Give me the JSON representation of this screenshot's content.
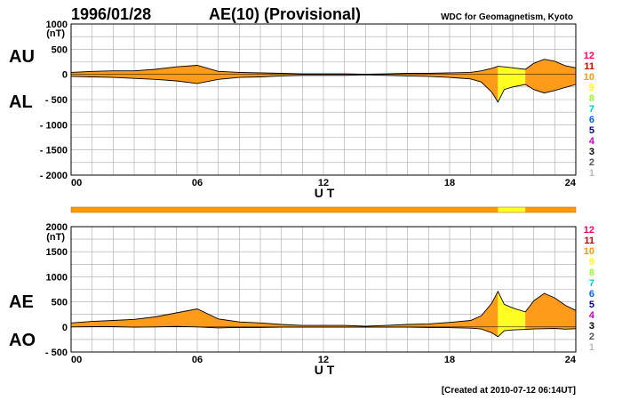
{
  "header": {
    "date": "1996/01/28",
    "title": "AE(10) (Provisional)",
    "source": "WDC for Geomagnetism, Kyoto",
    "created": "[Created at 2010-07-12 06:14UT]"
  },
  "legend": {
    "labels": [
      "12",
      "11",
      "10",
      "9",
      "8",
      "7",
      "6",
      "5",
      "4",
      "3",
      "2",
      "1"
    ],
    "colors": [
      "#ff0066",
      "#cc0000",
      "#ff9900",
      "#ffff00",
      "#99ff33",
      "#00cccc",
      "#0066ff",
      "#000099",
      "#cc00cc",
      "#000000",
      "#555555",
      "#bbbbbb"
    ]
  },
  "fill_colors": {
    "orange": "#ff9b1a",
    "yellow": "#ffff22",
    "bar": "#ff9900"
  },
  "station_bar": {
    "segments": [
      {
        "from": 0,
        "to": 20.3,
        "stations": 10
      },
      {
        "from": 20.3,
        "to": 21.6,
        "stations": 9
      },
      {
        "from": 21.6,
        "to": 24,
        "stations": 10
      }
    ]
  },
  "chart_data": [
    {
      "type": "area",
      "xlabel": "U T",
      "ylabel": "(nT)",
      "labels_left": [
        "AU",
        "AL"
      ],
      "xlim": [
        0,
        24
      ],
      "ylim": [
        -2000,
        1000
      ],
      "xticks": [
        0,
        6,
        12,
        18,
        24
      ],
      "xtick_labels": [
        "00",
        "06",
        "12",
        "18",
        "24"
      ],
      "yticks": [
        1000,
        500,
        0,
        -500,
        -1000,
        -1500,
        -2000
      ],
      "ytick_labels": [
        "1000",
        "500",
        "0",
        "- 500",
        "- 1000",
        "- 1500",
        "- 2000"
      ],
      "grid": true,
      "series": [
        {
          "name": "AU",
          "x": [
            0,
            1,
            2,
            3,
            4,
            5,
            6,
            7,
            8,
            9,
            10,
            11,
            12,
            13,
            14,
            15,
            16,
            17,
            18,
            19,
            19.5,
            20,
            20.3,
            20.6,
            21,
            21.6,
            22,
            22.5,
            23,
            23.5,
            24
          ],
          "values": [
            40,
            60,
            70,
            70,
            100,
            150,
            180,
            60,
            40,
            30,
            20,
            10,
            10,
            10,
            5,
            10,
            20,
            20,
            30,
            40,
            70,
            120,
            160,
            150,
            130,
            100,
            220,
            300,
            260,
            170,
            130
          ]
        },
        {
          "name": "AL",
          "x": [
            0,
            1,
            2,
            3,
            4,
            5,
            6,
            7,
            8,
            9,
            10,
            11,
            12,
            13,
            14,
            15,
            16,
            17,
            18,
            19,
            19.5,
            20,
            20.3,
            20.6,
            21,
            21.6,
            22,
            22.5,
            23,
            23.5,
            24
          ],
          "values": [
            -40,
            -50,
            -60,
            -80,
            -100,
            -130,
            -180,
            -100,
            -60,
            -50,
            -30,
            -20,
            -20,
            -20,
            -10,
            -20,
            -30,
            -40,
            -60,
            -90,
            -150,
            -350,
            -550,
            -300,
            -250,
            -200,
            -300,
            -370,
            -320,
            -260,
            -200
          ]
        }
      ]
    },
    {
      "type": "area",
      "xlabel": "U T",
      "ylabel": "(nT)",
      "labels_left": [
        "AE",
        "AO"
      ],
      "xlim": [
        0,
        24
      ],
      "ylim": [
        -500,
        2000
      ],
      "xticks": [
        0,
        6,
        12,
        18,
        24
      ],
      "xtick_labels": [
        "00",
        "06",
        "12",
        "18",
        "24"
      ],
      "yticks": [
        2000,
        1500,
        1000,
        500,
        0,
        -500
      ],
      "ytick_labels": [
        "2000",
        "1500",
        "1000",
        "500",
        "0",
        "- 500"
      ],
      "grid": true,
      "series": [
        {
          "name": "AE",
          "x": [
            0,
            1,
            2,
            3,
            4,
            5,
            6,
            7,
            8,
            9,
            10,
            11,
            12,
            13,
            14,
            15,
            16,
            17,
            18,
            19,
            19.5,
            20,
            20.3,
            20.6,
            21,
            21.6,
            22,
            22.5,
            23,
            23.5,
            24
          ],
          "values": [
            80,
            110,
            130,
            150,
            200,
            280,
            360,
            160,
            100,
            80,
            50,
            30,
            30,
            30,
            15,
            30,
            50,
            60,
            90,
            130,
            220,
            470,
            710,
            450,
            380,
            300,
            520,
            670,
            580,
            430,
            330
          ]
        },
        {
          "name": "AO",
          "x": [
            0,
            1,
            2,
            3,
            4,
            5,
            6,
            7,
            8,
            9,
            10,
            11,
            12,
            13,
            14,
            15,
            16,
            17,
            18,
            19,
            19.5,
            20,
            20.3,
            20.6,
            21,
            21.6,
            22,
            22.5,
            23,
            23.5,
            24
          ],
          "values": [
            0,
            5,
            5,
            -5,
            0,
            10,
            0,
            -20,
            -10,
            -10,
            -5,
            -5,
            -5,
            -5,
            -3,
            -5,
            -5,
            -10,
            -15,
            -25,
            -40,
            -115,
            -195,
            -75,
            -60,
            -50,
            -40,
            -35,
            -30,
            -45,
            -35
          ]
        }
      ]
    }
  ]
}
